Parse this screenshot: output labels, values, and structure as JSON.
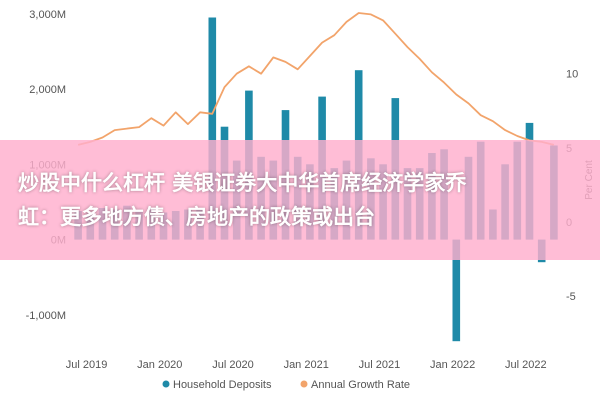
{
  "chart_data": {
    "type": "bar+line",
    "title": "",
    "x_ticks": [
      "Jul 2019",
      "Jan 2020",
      "Jul 2020",
      "Jan 2021",
      "Jul 2021",
      "Jan 2022",
      "Jul 2022"
    ],
    "y_left_ticks": [
      "3,000M",
      "2,000M",
      "1,000M",
      "0M",
      "-1,000M"
    ],
    "y_left_range": [
      -1400,
      3050
    ],
    "y_right_ticks": [
      "10",
      "5",
      "0",
      "-5"
    ],
    "y_right_range": [
      -8.3,
      14.3
    ],
    "y_right_label": "Per Cent",
    "grid": false,
    "legend_position": "bottom",
    "series": [
      {
        "name": "Household Deposits",
        "type": "bar",
        "color": "#1f8aa8",
        "values": [
          380,
          350,
          420,
          400,
          450,
          380,
          420,
          360,
          380,
          400,
          420,
          2950,
          1500,
          1050,
          1980,
          1100,
          1050,
          1720,
          1100,
          1000,
          1900,
          950,
          1050,
          2250,
          1080,
          1000,
          1880,
          950,
          950,
          1150,
          1200,
          -1350,
          1100,
          1300,
          400,
          1000,
          1300,
          1550,
          -300,
          1250
        ]
      },
      {
        "name": "Annual Growth Rate",
        "type": "line",
        "color": "#f2a46b",
        "values": [
          5.2,
          5.4,
          5.7,
          6.2,
          6.3,
          6.4,
          7.0,
          6.5,
          7.4,
          6.6,
          7.4,
          7.3,
          9.1,
          10.0,
          10.5,
          10.0,
          11.1,
          10.8,
          10.3,
          11.2,
          12.1,
          12.6,
          13.5,
          14.1,
          14.0,
          13.6,
          12.7,
          11.8,
          11.0,
          10.1,
          9.4,
          8.6,
          8.0,
          7.2,
          6.8,
          6.2,
          5.8,
          5.5,
          5.4,
          5.2
        ]
      }
    ]
  },
  "banner": {
    "line1": "炒股中什么杠杆 美银证券大中华首席经济学家乔",
    "line2": "虹：更多地方债、房地产的政策或出台"
  }
}
